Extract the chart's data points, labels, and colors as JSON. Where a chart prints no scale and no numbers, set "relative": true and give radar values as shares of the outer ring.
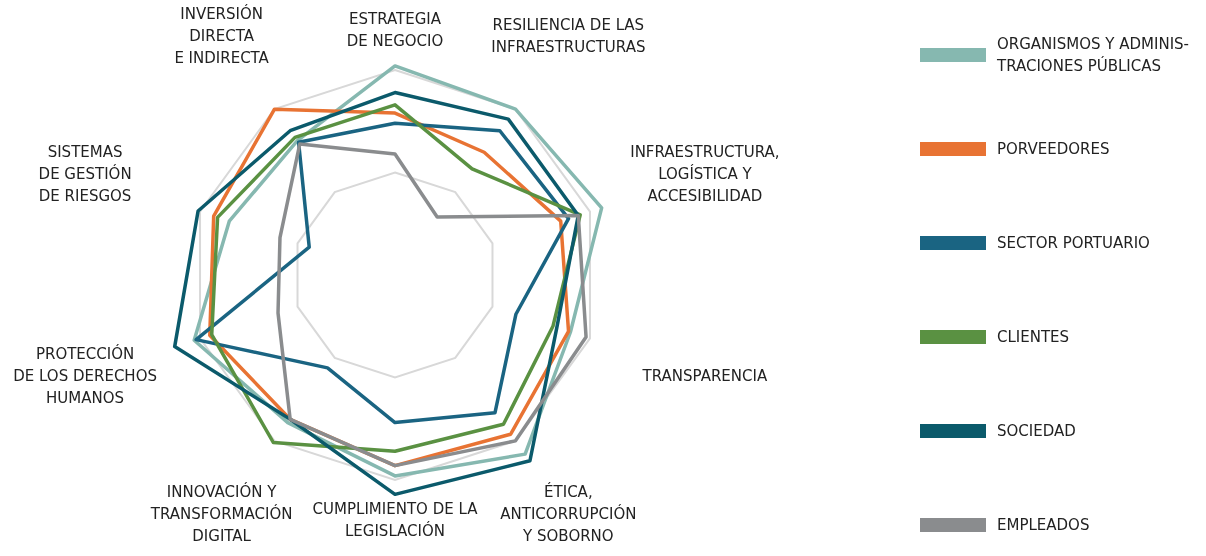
{
  "chart_data": {
    "type": "radar",
    "relative": true,
    "grid": true,
    "legend": "right",
    "line_style": "solid",
    "marker": "none",
    "categories": [
      "ESTRATEGIA\nDE NEGOCIO",
      "RESILIENCIA DE LAS\nINFRAESTRUCTURAS",
      "INFRAESTRUCTURA,\nLOGÍSTICA Y\nACCESIBILIDAD",
      "TRANSPARENCIA",
      "ÉTICA,\nANTICORRUPCIÓN\nY SOBORNO",
      "CUMPLIMIENTO DE LA\nLEGISLACIÓN",
      "INNOVACIÓN Y\nTRANSFORMACIÓN\nDIGITAL",
      "PROTECCIÓN\nDE LOS DERECHOS\nHUMANOS",
      "SISTEMAS\nDE GESTIÓN\nDE RIESGOS",
      "INVERSIÓN\nDIRECTA\nE INDIRECTA"
    ],
    "series": [
      {
        "name": "ORGANISMOS Y ADMINIS-\nTRACIONES PÚBLICAS",
        "color": "#86b8b0",
        "values": [
          1.02,
          1.0,
          1.06,
          0.9,
          1.08,
          0.98,
          0.89,
          1.03,
          0.85,
          0.81
        ]
      },
      {
        "name": "PORVEEDORES",
        "color": "#e87333",
        "values": [
          0.79,
          0.74,
          0.85,
          0.89,
          0.96,
          0.93,
          0.87,
          0.95,
          0.93,
          1.0
        ]
      },
      {
        "name": "SECTOR PORTUARIO",
        "color": "#1a6482",
        "values": [
          0.74,
          0.87,
          0.89,
          0.62,
          0.83,
          0.72,
          0.56,
          1.02,
          0.44,
          0.8
        ]
      },
      {
        "name": "CLIENTES",
        "color": "#5a9142",
        "values": [
          0.83,
          0.64,
          0.95,
          0.81,
          0.9,
          0.86,
          1.01,
          0.94,
          0.91,
          0.83
        ]
      },
      {
        "name": "SOCIEDAD",
        "color": "#0b5a6b",
        "values": [
          0.89,
          0.94,
          0.94,
          0.83,
          1.12,
          1.07,
          0.87,
          1.13,
          1.01,
          0.87
        ]
      },
      {
        "name": "EMPLEADOS",
        "color": "#8a8c8e",
        "values": [
          0.59,
          0.35,
          0.94,
          0.98,
          1.0,
          0.93,
          0.87,
          0.6,
          0.59,
          0.79
        ]
      }
    ]
  }
}
